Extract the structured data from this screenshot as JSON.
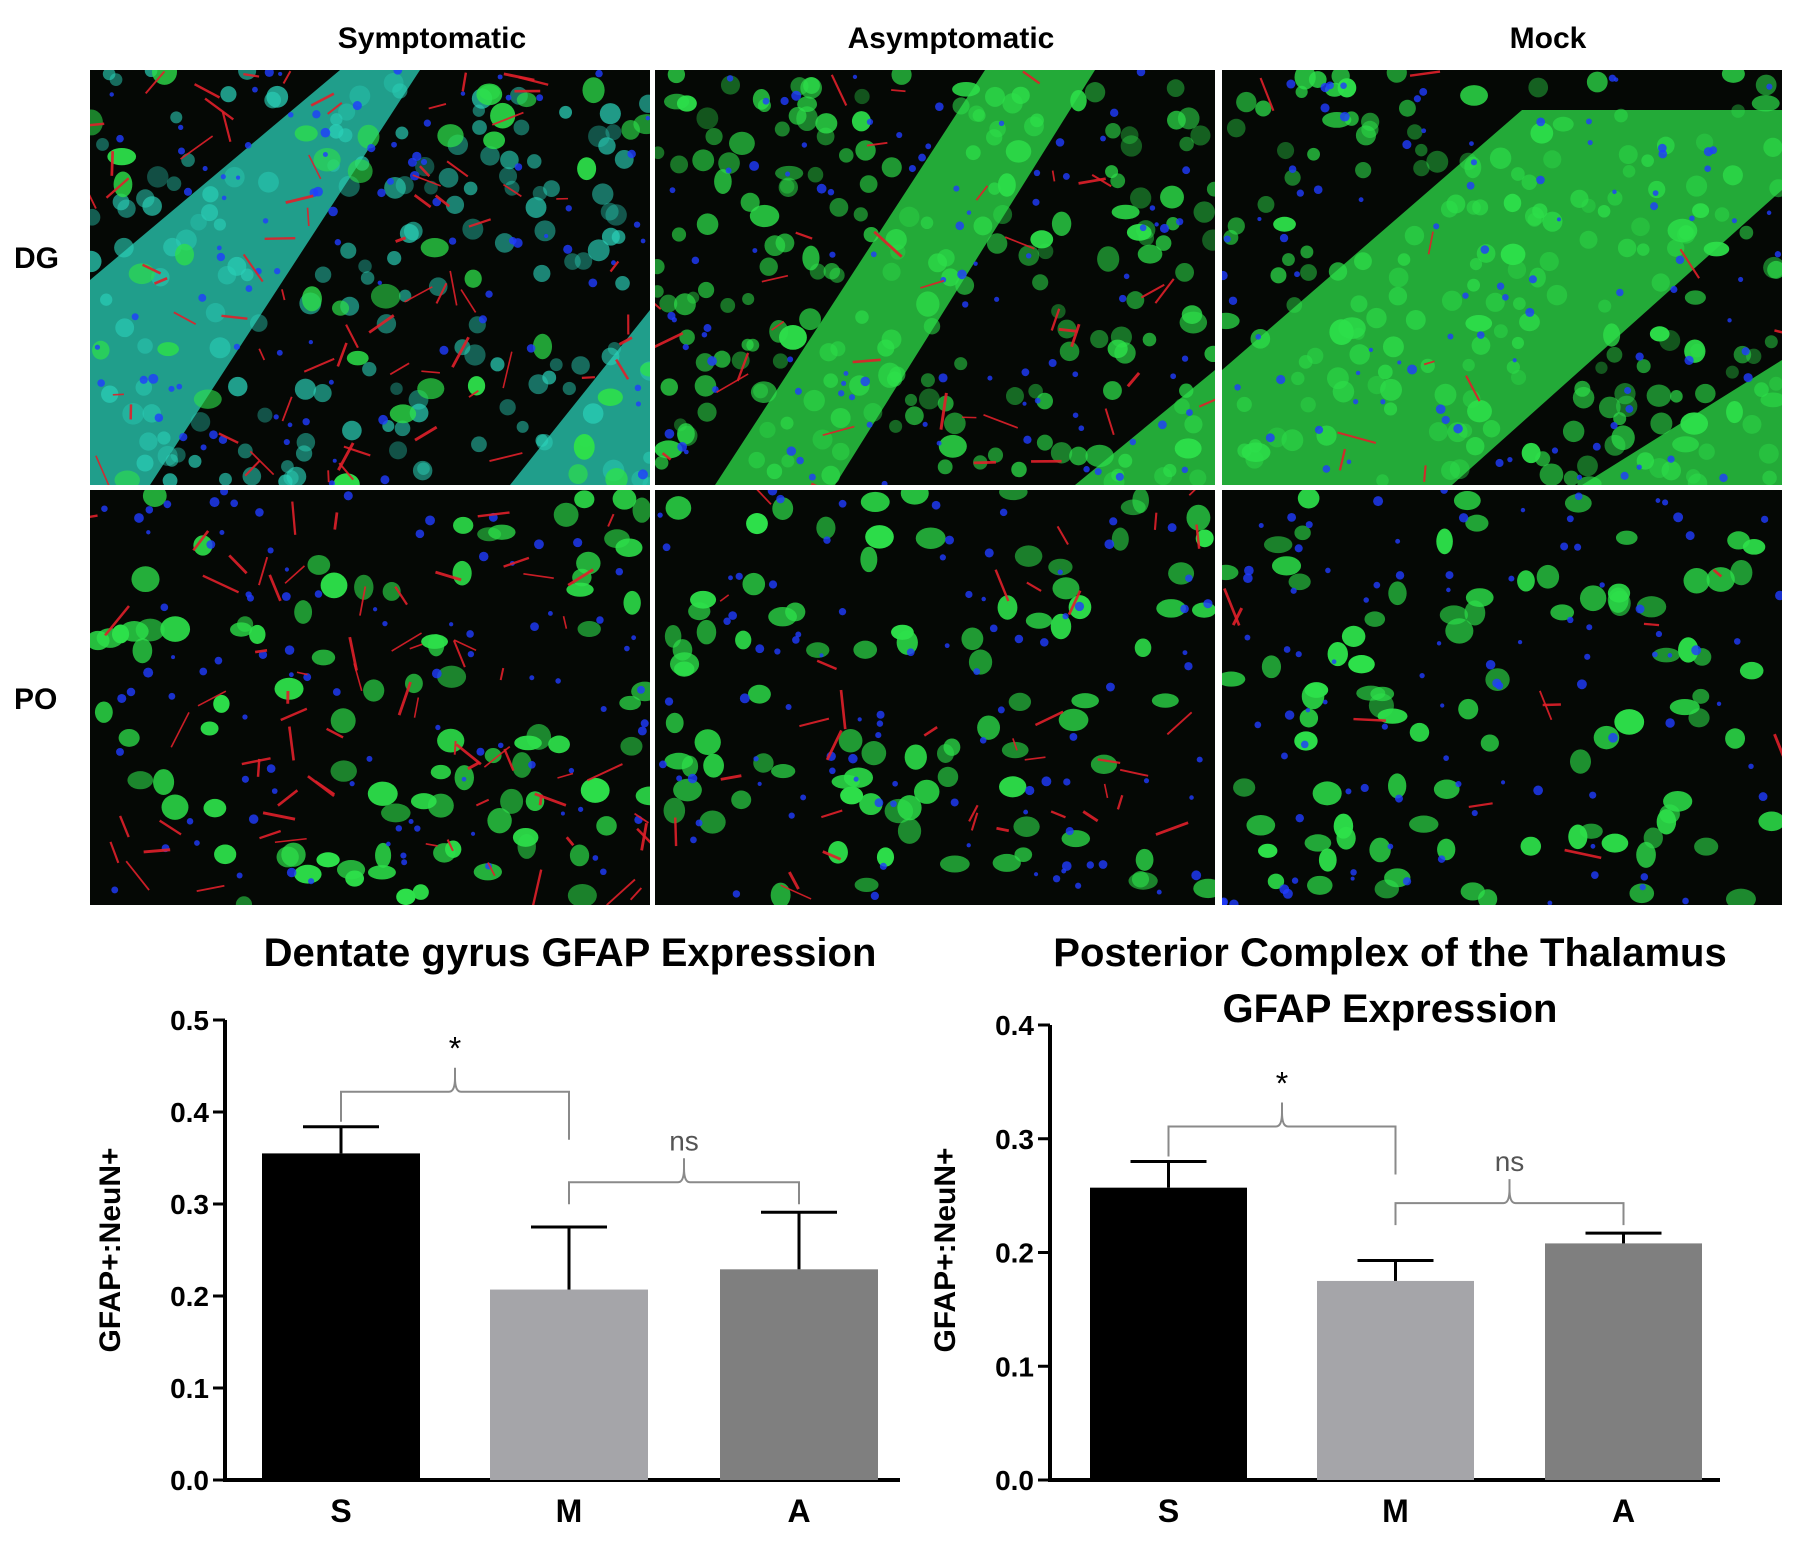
{
  "micrographs": {
    "columns": [
      "Symptomatic",
      "Asymptomatic",
      "Mock"
    ],
    "rows": [
      "DG",
      "PO"
    ],
    "channel_colors": {
      "neun_green": "#2de04a",
      "gfap_red": "#e0202a",
      "nuclei_blue": "#1f3cff",
      "overlap_cyan": "#2ad0b8",
      "background": "#050805"
    }
  },
  "chart_data": [
    {
      "type": "bar",
      "title": "Dentate gyrus GFAP Expression",
      "ylabel": "GFAP+:NeuN+",
      "categories": [
        "S",
        "M",
        "A"
      ],
      "values": [
        0.355,
        0.207,
        0.229
      ],
      "errors": [
        0.029,
        0.068,
        0.062
      ],
      "bar_colors": [
        "#000000",
        "#a5a5a9",
        "#7f7f7f"
      ],
      "ylim": [
        0.0,
        0.5
      ],
      "yticks": [
        "0.0",
        "0.1",
        "0.2",
        "0.3",
        "0.4",
        "0.5"
      ],
      "annotations": [
        {
          "from": "S",
          "to": "M",
          "label": "*"
        },
        {
          "from": "M",
          "to": "A",
          "label": "ns"
        }
      ]
    },
    {
      "type": "bar",
      "title": "Posterior Complex of the Thalamus GFAP Expression",
      "title_lines": [
        "Posterior Complex of the Thalamus",
        "GFAP Expression"
      ],
      "ylabel": "GFAP+:NeuN+",
      "categories": [
        "S",
        "M",
        "A"
      ],
      "values": [
        0.257,
        0.175,
        0.208
      ],
      "errors": [
        0.023,
        0.018,
        0.009
      ],
      "bar_colors": [
        "#000000",
        "#a5a5a9",
        "#7f7f7f"
      ],
      "ylim": [
        0.0,
        0.4
      ],
      "yticks": [
        "0.0",
        "0.1",
        "0.2",
        "0.3",
        "0.4"
      ],
      "annotations": [
        {
          "from": "S",
          "to": "M",
          "label": "*"
        },
        {
          "from": "M",
          "to": "A",
          "label": "ns"
        }
      ]
    }
  ]
}
